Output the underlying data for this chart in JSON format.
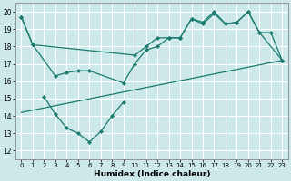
{
  "bg_color": "#cce8e8",
  "grid_color": "#ffffff",
  "line_color": "#1a7a6e",
  "xlabel": "Humidex (Indice chaleur)",
  "xlim": [
    -0.5,
    23.5
  ],
  "ylim": [
    11.5,
    20.5
  ],
  "xticks": [
    0,
    1,
    2,
    3,
    4,
    5,
    6,
    7,
    8,
    9,
    10,
    11,
    12,
    13,
    14,
    15,
    16,
    17,
    18,
    19,
    20,
    21,
    22,
    23
  ],
  "yticks": [
    12,
    13,
    14,
    15,
    16,
    17,
    18,
    19,
    20
  ],
  "series1_x": [
    0,
    1,
    3,
    4,
    5,
    6,
    9,
    10,
    11,
    12,
    13,
    14,
    15,
    16,
    17,
    18,
    19,
    20,
    21,
    23
  ],
  "series1_y": [
    19.7,
    18.1,
    16.3,
    16.5,
    16.6,
    16.6,
    15.9,
    17.0,
    17.8,
    18.0,
    18.5,
    18.5,
    19.6,
    19.4,
    20.0,
    19.3,
    19.4,
    20.0,
    18.8,
    17.2
  ],
  "series2_x": [
    2,
    3,
    4,
    5,
    6,
    7,
    8,
    9
  ],
  "series2_y": [
    15.1,
    14.1,
    13.3,
    13.0,
    12.5,
    13.1,
    14.0,
    14.8
  ],
  "series3_x": [
    0,
    1,
    10,
    11,
    12,
    13,
    14,
    15,
    16,
    17,
    18,
    19,
    20,
    21,
    22,
    23
  ],
  "series3_y": [
    19.7,
    18.1,
    17.5,
    18.0,
    18.5,
    18.5,
    18.5,
    19.6,
    19.3,
    19.9,
    19.3,
    19.4,
    20.0,
    18.8,
    18.8,
    17.2
  ],
  "trend_x": [
    0,
    23
  ],
  "trend_y": [
    14.2,
    17.2
  ]
}
